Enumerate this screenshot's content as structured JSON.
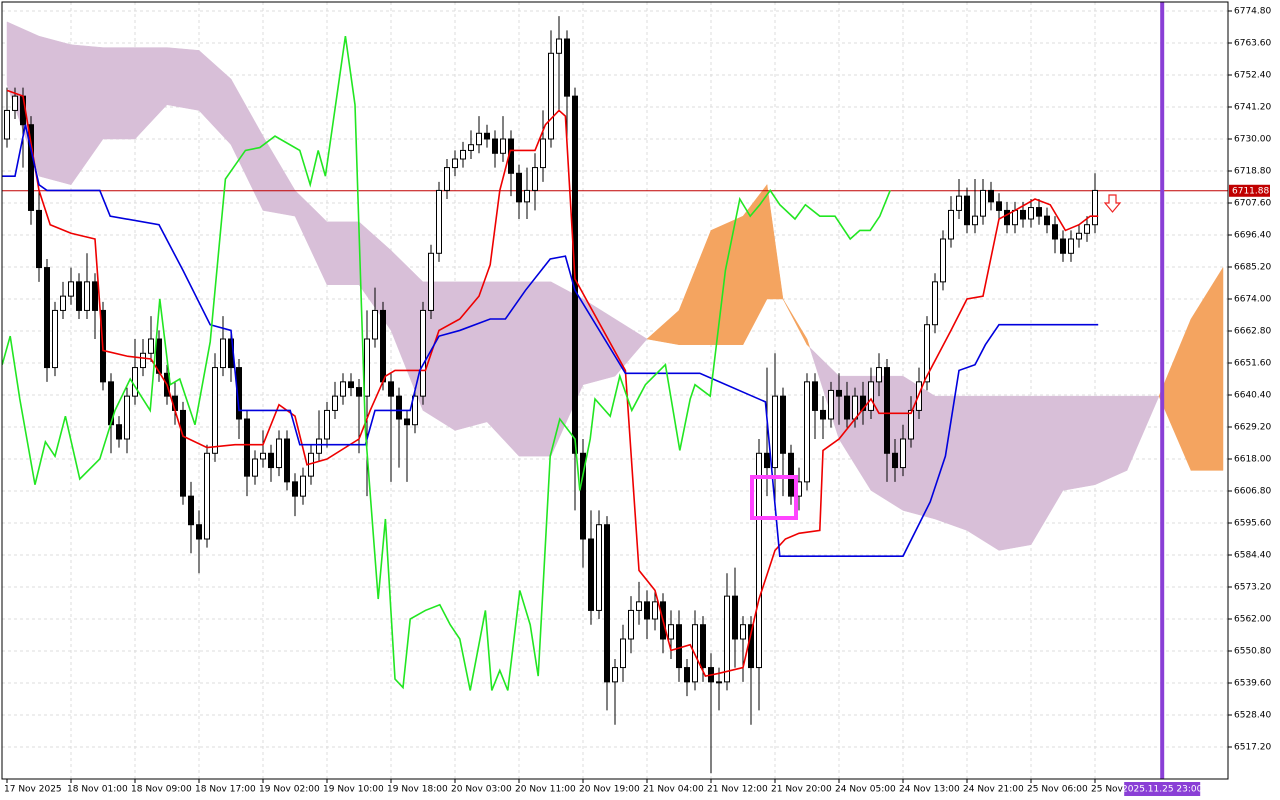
{
  "chart_data": {
    "type": "candlestick",
    "open": [
      6730,
      6740,
      6745,
      6735,
      6705,
      6685,
      6650,
      6670,
      6675,
      6680,
      6670,
      6680,
      6670,
      6645,
      6630,
      6625,
      6640,
      6650,
      6655,
      6660,
      6648,
      6640,
      6635,
      6605,
      6595,
      6590,
      6620,
      6650,
      6660,
      6650,
      6632,
      6612,
      6618,
      6620,
      6615,
      6625,
      6610,
      6605,
      6612,
      6620,
      6625,
      6635,
      6640,
      6645,
      6643,
      6640,
      6660,
      6670,
      6645,
      6640,
      6632,
      6630,
      6640,
      6670,
      6690,
      6712,
      6720,
      6723,
      6726,
      6728,
      6732,
      6730,
      6725,
      6730,
      6718,
      6708,
      6712,
      6720,
      6730,
      6760,
      6765,
      6745,
      6620,
      6590,
      6565,
      6595,
      6540,
      6545,
      6555,
      6565,
      6568,
      6562,
      6568,
      6555,
      6560,
      6545,
      6540,
      6560,
      6545,
      6540,
      6540,
      6570,
      6555,
      6560,
      6545,
      6620,
      6615,
      6640,
      6620,
      6605,
      6610,
      6645,
      6635,
      6632,
      6642,
      6640,
      6632,
      6640,
      6635,
      6645,
      6650,
      6620,
      6615,
      6625,
      6635,
      6645,
      6665,
      6680,
      6695,
      6705,
      6710,
      6700,
      6703,
      6712,
      6708,
      6705,
      6700,
      6705,
      6702,
      6706,
      6703,
      6700,
      6695,
      6690,
      6695,
      6697,
      6700
    ],
    "high": [
      6748,
      6748,
      6748,
      6738,
      6712,
      6688,
      6673,
      6680,
      6685,
      6683,
      6690,
      6683,
      6673,
      6648,
      6633,
      6643,
      6660,
      6660,
      6668,
      6663,
      6651,
      6645,
      6638,
      6610,
      6600,
      6623,
      6655,
      6668,
      6663,
      6653,
      6635,
      6621,
      6628,
      6623,
      6628,
      6628,
      6613,
      6615,
      6623,
      6635,
      6638,
      6645,
      6648,
      6648,
      6646,
      6670,
      6678,
      6673,
      6648,
      6643,
      6635,
      6643,
      6673,
      6693,
      6715,
      6723,
      6726,
      6729,
      6733,
      6738,
      6735,
      6733,
      6738,
      6733,
      6721,
      6720,
      6725,
      6740,
      6768,
      6773,
      6768,
      6748,
      6625,
      6600,
      6600,
      6598,
      6548,
      6560,
      6570,
      6575,
      6572,
      6572,
      6571,
      6565,
      6565,
      6548,
      6565,
      6563,
      6550,
      6545,
      6578,
      6580,
      6563,
      6563,
      6625,
      6650,
      6655,
      6643,
      6623,
      6615,
      6648,
      6648,
      6640,
      6645,
      6648,
      6645,
      6643,
      6645,
      6650,
      6655,
      6653,
      6625,
      6630,
      6640,
      6650,
      6668,
      6683,
      6698,
      6710,
      6716,
      6713,
      6716,
      6716,
      6715,
      6711,
      6708,
      6708,
      6708,
      6709,
      6709,
      6706,
      6703,
      6698,
      6698,
      6700,
      6703,
      6718
    ],
    "low": [
      6727,
      6737,
      6720,
      6700,
      6680,
      6645,
      6647,
      6667,
      6672,
      6667,
      6667,
      6660,
      6642,
      6620,
      6622,
      6620,
      6637,
      6647,
      6652,
      6645,
      6637,
      6630,
      6602,
      6585,
      6578,
      6587,
      6617,
      6647,
      6645,
      6625,
      6605,
      6609,
      6615,
      6610,
      6612,
      6607,
      6598,
      6602,
      6609,
      6617,
      6622,
      6632,
      6637,
      6640,
      6620,
      6605,
      6657,
      6642,
      6610,
      6615,
      6610,
      6627,
      6637,
      6667,
      6687,
      6709,
      6717,
      6720,
      6723,
      6725,
      6727,
      6720,
      6722,
      6710,
      6702,
      6702,
      6705,
      6715,
      6727,
      6740,
      6730,
      6600,
      6580,
      6560,
      6562,
      6530,
      6525,
      6540,
      6550,
      6560,
      6555,
      6558,
      6550,
      6548,
      6540,
      6535,
      6537,
      6540,
      6508,
      6530,
      6537,
      6545,
      6540,
      6525,
      6530,
      6605,
      6600,
      6605,
      6602,
      6600,
      6607,
      6625,
      6625,
      6629,
      6630,
      6629,
      6629,
      6630,
      6632,
      6640,
      6610,
      6610,
      6612,
      6622,
      6632,
      6642,
      6662,
      6677,
      6692,
      6702,
      6697,
      6697,
      6700,
      6705,
      6702,
      6697,
      6697,
      6699,
      6699,
      6700,
      6697,
      6690,
      6687,
      6687,
      6692,
      6694,
      6697
    ],
    "close": [
      6740,
      6745,
      6735,
      6705,
      6685,
      6650,
      6670,
      6675,
      6680,
      6670,
      6680,
      6670,
      6645,
      6630,
      6625,
      6640,
      6650,
      6655,
      6660,
      6648,
      6640,
      6635,
      6605,
      6595,
      6590,
      6620,
      6650,
      6660,
      6650,
      6632,
      6612,
      6618,
      6620,
      6615,
      6625,
      6610,
      6605,
      6612,
      6620,
      6625,
      6635,
      6640,
      6645,
      6643,
      6640,
      6660,
      6670,
      6645,
      6640,
      6632,
      6630,
      6640,
      6670,
      6690,
      6712,
      6720,
      6723,
      6726,
      6728,
      6732,
      6730,
      6725,
      6730,
      6718,
      6708,
      6712,
      6720,
      6730,
      6760,
      6765,
      6745,
      6620,
      6590,
      6565,
      6595,
      6540,
      6545,
      6555,
      6565,
      6568,
      6562,
      6568,
      6555,
      6560,
      6545,
      6540,
      6560,
      6545,
      6540,
      6540,
      6570,
      6555,
      6560,
      6545,
      6620,
      6615,
      6640,
      6620,
      6605,
      6610,
      6645,
      6635,
      6632,
      6642,
      6640,
      6632,
      6640,
      6635,
      6645,
      6650,
      6620,
      6615,
      6625,
      6635,
      6645,
      6665,
      6680,
      6695,
      6705,
      6710,
      6700,
      6703,
      6712,
      6708,
      6705,
      6700,
      6705,
      6702,
      6706,
      6703,
      6700,
      6695,
      6690,
      6695,
      6697,
      6700,
      6712
    ],
    "up_color": "#ffffff",
    "down_color": "#000000",
    "lines": [
      {
        "color": "#ee0000",
        "x": [
          0,
          2,
          4,
          5.4,
          8,
          11,
          12,
          15,
          18,
          20,
          22,
          25,
          28.5,
          32,
          34,
          36,
          37.5,
          40,
          44,
          45.4,
          47.3,
          48.5,
          52.3,
          54,
          56.6,
          59,
          60.4,
          61.6,
          62.9,
          66,
          67.3,
          69,
          69.8,
          71,
          77.3,
          79,
          81,
          83,
          85.4,
          87.3,
          89,
          92,
          94,
          96,
          97.3,
          99,
          101.6,
          102,
          104,
          106,
          108,
          109,
          111,
          113,
          114.8,
          118,
          120,
          122,
          124,
          126,
          128.5,
          130.4,
          132.3,
          134,
          135.4,
          136.4
        ],
        "values": [
          6747,
          6745,
          6712,
          6700,
          6697,
          6695,
          6656,
          6654,
          6653,
          6644,
          6626,
          6622,
          6623,
          6623,
          6637,
          6633,
          6616,
          6618,
          6625,
          6635,
          6647,
          6649,
          6649,
          6663,
          6667,
          6675,
          6686,
          6712,
          6726,
          6726,
          6735,
          6740,
          6738,
          6681,
          6649,
          6579,
          6572,
          6551,
          6553,
          6542,
          6543,
          6545,
          6569,
          6586,
          6590,
          6592,
          6593,
          6621,
          6625,
          6632,
          6639,
          6634,
          6634,
          6634,
          6646,
          6663,
          6674,
          6675,
          6702,
          6705,
          6709,
          6707,
          6698,
          6700,
          6703,
          6703
        ]
      },
      {
        "color": "#0000dd",
        "x": [
          -0.6,
          1,
          2.3,
          4,
          5,
          11.6,
          12.9,
          19,
          22,
          25.4,
          28,
          29,
          35.4,
          36.6,
          44.8,
          46,
          50.4,
          51.6,
          54,
          56.6,
          60.4,
          62.3,
          64.8,
          67.9,
          69.8,
          71,
          76,
          77.3,
          86.6,
          94.8,
          96.6,
          112,
          115.4,
          117.3,
          119,
          121,
          122.3,
          124,
          136,
          136.4
        ],
        "values": [
          6717,
          6717,
          6735,
          6714,
          6712,
          6712,
          6703,
          6700,
          6684,
          6665,
          6663,
          6635,
          6635,
          6623,
          6623,
          6635,
          6635,
          6649,
          6661,
          6663,
          6667,
          6667,
          6677,
          6688,
          6689,
          6677,
          6654,
          6648,
          6648,
          6638,
          6584,
          6584,
          6603,
          6619,
          6649,
          6651,
          6658,
          6665,
          6665,
          6665
        ]
      },
      {
        "color": "#22e622",
        "x": [
          -0.6,
          0.4,
          1.6,
          3.5,
          4.8,
          6,
          7.3,
          9.1,
          11.6,
          13.5,
          15.4,
          17.9,
          19.1,
          20.4,
          21.6,
          23.5,
          25.4,
          27.3,
          29.8,
          31.6,
          33.5,
          36.6,
          37.9,
          38.9,
          39.8,
          42.3,
          43.5,
          44.8,
          46.4,
          47.3,
          48.5,
          49.5,
          50.4,
          52.3,
          54.1,
          55.4,
          56.6,
          57.9,
          59.8,
          60.6,
          61.6,
          62.6,
          64.1,
          65.4,
          66.4,
          67.9,
          69.1,
          71,
          71.6,
          72.9,
          73.5,
          75.4,
          76.6,
          78.1,
          79.8,
          82.3,
          84.1,
          85.4,
          86,
          87.9,
          89.8,
          91.6,
          92.9,
          94.1,
          95.4,
          96.6,
          98.5,
          99.8,
          101.6,
          103.5,
          105.4,
          106.6,
          107.9,
          109.1,
          110.4
        ],
        "values": [
          6651,
          6661,
          6639,
          6609,
          6624,
          6619,
          6633,
          6611,
          6618,
          6635,
          6646,
          6635,
          6674,
          6644,
          6646,
          6630,
          6659,
          6716,
          6726,
          6727,
          6731,
          6726,
          6714,
          6726,
          6717,
          6766,
          6742,
          6628,
          6569,
          6597,
          6541,
          6538,
          6562,
          6565,
          6567,
          6560,
          6555,
          6537,
          6565,
          6537,
          6544,
          6537,
          6572,
          6560,
          6542,
          6619,
          6632,
          6625,
          6607,
          6625,
          6639,
          6633,
          6647,
          6635,
          6644,
          6651,
          6621,
          6639,
          6644,
          6640,
          6684,
          6709,
          6703,
          6707,
          6712,
          6707,
          6702,
          6707,
          6703,
          6703,
          6695,
          6698,
          6698,
          6703,
          6712
        ]
      }
    ],
    "cloud": {
      "x": [
        0,
        4,
        8,
        12,
        16,
        20,
        24,
        28,
        32,
        36,
        40,
        44,
        48,
        52,
        56,
        60,
        64,
        68,
        72,
        76,
        80,
        84,
        88,
        92,
        95,
        97,
        100,
        104,
        108,
        112,
        116,
        120,
        124,
        128,
        132,
        136,
        140,
        144,
        148,
        152
      ],
      "span_a": [
        6749,
        6717,
        6714,
        6730,
        6730,
        6742,
        6740,
        6728,
        6705,
        6703,
        6679,
        6679,
        6663,
        6635,
        6628,
        6631,
        6619,
        6619,
        6644,
        6647,
        6660,
        6670,
        6698,
        6703,
        6714,
        6674,
        6660,
        6625,
        6607,
        6600,
        6597,
        6593,
        6586,
        6588,
        6607,
        6609,
        6614,
        6640,
        6667,
        6685
      ],
      "span_b": [
        6771,
        6766,
        6763,
        6762,
        6762,
        6762,
        6761,
        6751,
        6731,
        6712,
        6701,
        6701,
        6691,
        6680,
        6680,
        6680,
        6680,
        6680,
        6674,
        6667,
        6660,
        6658,
        6658,
        6658,
        6674,
        6674,
        6658,
        6647,
        6647,
        6647,
        6640,
        6640,
        6640,
        6640,
        6640,
        6640,
        6640,
        6640,
        6614,
        6614
      ],
      "bull_color": "#f4a460",
      "bear_color": "#d8bfd8"
    },
    "current_price": 6711.88,
    "current_price_color": "#c00000",
    "time_marker": {
      "x": 144.4,
      "label": "2025.11.25 23:00",
      "color": "#8a3fd6"
    },
    "xlim": [
      -0.625,
      152.625
    ],
    "xticks": [
      {
        "value": 0,
        "label": "17 Nov 2025"
      },
      {
        "value": 8,
        "label": "18 Nov 01:00"
      },
      {
        "value": 16,
        "label": "18 Nov 09:00"
      },
      {
        "value": 24,
        "label": "18 Nov 17:00"
      },
      {
        "value": 32,
        "label": "19 Nov 02:00"
      },
      {
        "value": 40,
        "label": "19 Nov 10:00"
      },
      {
        "value": 48,
        "label": "19 Nov 18:00"
      },
      {
        "value": 56,
        "label": "20 Nov 03:00"
      },
      {
        "value": 64,
        "label": "20 Nov 11:00"
      },
      {
        "value": 72,
        "label": "20 Nov 19:00"
      },
      {
        "value": 80,
        "label": "21 Nov 04:00"
      },
      {
        "value": 88,
        "label": "21 Nov 12:00"
      },
      {
        "value": 96,
        "label": "21 Nov 20:00"
      },
      {
        "value": 104,
        "label": "24 Nov 05:00"
      },
      {
        "value": 112,
        "label": "24 Nov 13:00"
      },
      {
        "value": 120,
        "label": "24 Nov 21:00"
      },
      {
        "value": 128,
        "label": "25 Nov 06:00"
      },
      {
        "value": 136,
        "label": "25 Nov"
      }
    ],
    "ylim": [
      6506.0,
      6777.95
    ],
    "yticks": [
      {
        "value": 6774.8,
        "label": "6774.80"
      },
      {
        "value": 6763.6,
        "label": "6763.60"
      },
      {
        "value": 6752.4,
        "label": "6752.40"
      },
      {
        "value": 6741.2,
        "label": "6741.20"
      },
      {
        "value": 6730,
        "label": "6730.00"
      },
      {
        "value": 6718.8,
        "label": "6718.80"
      },
      {
        "value": 6707.6,
        "label": "6707.60"
      },
      {
        "value": 6696.4,
        "label": "6696.40"
      },
      {
        "value": 6685.2,
        "label": "6685.20"
      },
      {
        "value": 6674,
        "label": "6674.00"
      },
      {
        "value": 6662.8,
        "label": "6662.80"
      },
      {
        "value": 6651.6,
        "label": "6651.60"
      },
      {
        "value": 6640.4,
        "label": "6640.40"
      },
      {
        "value": 6629.2,
        "label": "6629.20"
      },
      {
        "value": 6618,
        "label": "6618.00"
      },
      {
        "value": 6606.8,
        "label": "6606.80"
      },
      {
        "value": 6595.6,
        "label": "6595.60"
      },
      {
        "value": 6584.4,
        "label": "6584.40"
      },
      {
        "value": 6573.2,
        "label": "6573.20"
      },
      {
        "value": 6562,
        "label": "6562.00"
      },
      {
        "value": 6550.8,
        "label": "6550.80"
      },
      {
        "value": 6539.6,
        "label": "6539.60"
      },
      {
        "value": 6528.4,
        "label": "6528.40"
      },
      {
        "value": 6517.2,
        "label": "6517.20"
      }
    ],
    "grid": true
  }
}
